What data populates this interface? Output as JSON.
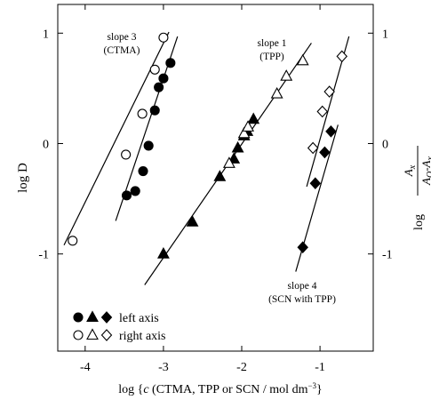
{
  "chart_data": {
    "type": "scatter",
    "xlabel": {
      "prefix": "log {",
      "italic": "c",
      "main": " (CTMA, TPP or SCN / mol dm",
      "sup": "−3",
      "suffix": "}"
    },
    "ylabel": "log D",
    "y2label": {
      "prefix": "log",
      "num": "A",
      "num_sub": "x",
      "den": "A",
      "den_sub": "O",
      "den_mid": "-A",
      "den_sub2": "x"
    },
    "xlim": [
      -4.35,
      -0.32
    ],
    "xticks": [
      -4,
      -3,
      -2,
      -1
    ],
    "ylim": [
      -1.88,
      1.26
    ],
    "yticks": [
      -1,
      0,
      1
    ],
    "y2lim": [
      -1.88,
      1.26
    ],
    "y2ticks": [
      -1,
      0,
      1
    ],
    "color": "#000000",
    "series": [
      {
        "marker": "circle",
        "filled": true,
        "x": [
          -3.47,
          -3.36,
          -3.26,
          -3.19,
          -3.11,
          -3.06,
          -3.0,
          -2.91
        ],
        "values": [
          -0.47,
          -0.43,
          -0.25,
          -0.02,
          0.3,
          0.51,
          0.59,
          0.73
        ]
      },
      {
        "marker": "circle",
        "filled": false,
        "axis": "y2",
        "x": [
          -4.16,
          -3.48,
          -3.27,
          -3.11,
          -3.0
        ],
        "values": [
          -0.88,
          -0.1,
          0.27,
          0.67,
          0.96
        ]
      },
      {
        "marker": "triangle",
        "filled": true,
        "x": [
          -3.0,
          -2.63,
          -2.28,
          -2.1,
          -2.05,
          -1.97,
          -1.93,
          -1.85
        ],
        "values": [
          -1.0,
          -0.71,
          -0.3,
          -0.14,
          -0.04,
          0.07,
          0.11,
          0.22
        ]
      },
      {
        "marker": "triangle",
        "filled": false,
        "axis": "y2",
        "x": [
          -2.16,
          -1.97,
          -1.92,
          -1.55,
          -1.43,
          -1.22
        ],
        "values": [
          -0.18,
          0.09,
          0.15,
          0.45,
          0.61,
          0.75
        ]
      },
      {
        "marker": "diamond",
        "filled": true,
        "x": [
          -1.22,
          -1.06,
          -0.94,
          -0.86
        ],
        "values": [
          -0.94,
          -0.36,
          -0.08,
          0.11
        ]
      },
      {
        "marker": "diamond",
        "filled": false,
        "axis": "y2",
        "x": [
          -1.09,
          -0.97,
          -0.88,
          -0.72
        ],
        "values": [
          -0.04,
          0.29,
          0.47,
          0.79
        ]
      }
    ],
    "fit_lines": [
      {
        "x": [
          -3.61,
          -2.82
        ],
        "y": [
          -0.7,
          0.97
        ]
      },
      {
        "axis": "y2",
        "x": [
          -4.27,
          -2.93
        ],
        "y": [
          -0.92,
          1.01
        ]
      },
      {
        "x": [
          -3.24,
          -1.11
        ],
        "y": [
          -1.28,
          0.91
        ]
      },
      {
        "x": [
          -1.31,
          -0.77
        ],
        "y": [
          -1.16,
          0.17
        ]
      },
      {
        "axis": "y2",
        "x": [
          -1.17,
          -0.63
        ],
        "y": [
          -0.39,
          0.97
        ]
      }
    ],
    "annotations": [
      {
        "line1": "slope 3",
        "line2": "(CTMA)"
      },
      {
        "line1": "slope 1",
        "line2": "(TPP)"
      },
      {
        "line1": "slope 4",
        "line2": "(SCN with TPP)"
      }
    ],
    "legend": [
      {
        "label": "left axis",
        "filled": true
      },
      {
        "label": "right axis",
        "filled": false
      }
    ]
  }
}
